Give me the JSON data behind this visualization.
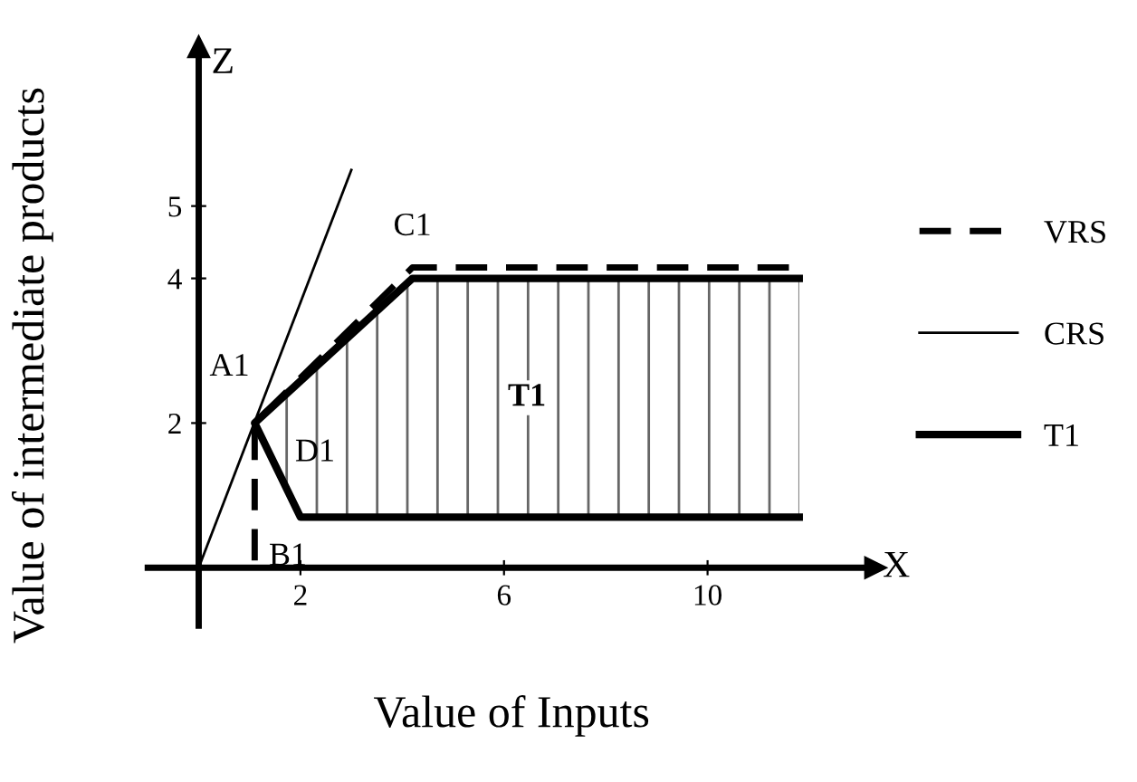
{
  "chart_data": {
    "type": "line",
    "xlabel": "Value of Inputs",
    "ylabel": "Value of intermediate products",
    "xlim": [
      -1,
      13.3
    ],
    "ylim": [
      -0.8,
      7.2
    ],
    "xticks": [
      2,
      6,
      10
    ],
    "yticks": [
      2,
      4,
      5
    ],
    "grid": false,
    "legend": "right",
    "marker": "none",
    "series": [
      {
        "name": "VRS",
        "color": "#000000",
        "line_style": "dashed",
        "x": [
          1.1,
          1.1,
          4.2,
          11.8
        ],
        "values": [
          0.1,
          2.0,
          4.15,
          4.15
        ]
      },
      {
        "name": "CRS",
        "color": "#000000",
        "line_style": "solid",
        "x": [
          0,
          3.0
        ],
        "values": [
          0,
          5.5
        ]
      },
      {
        "name": "T1",
        "color": "#000000",
        "line_style": "solid",
        "type": "area",
        "x": [
          11.8,
          2.0,
          1.1,
          4.2,
          11.8
        ],
        "values": [
          0.7,
          0.7,
          2.0,
          4.0,
          4.0
        ]
      }
    ],
    "annotations": [
      "Z",
      "X",
      "A1",
      "D1",
      "B1",
      "C1",
      "T1"
    ]
  }
}
